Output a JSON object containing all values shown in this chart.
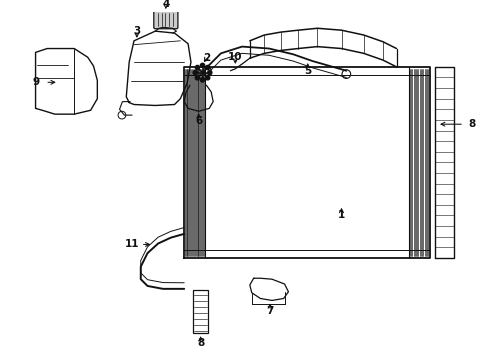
{
  "bg_color": "#ffffff",
  "lc": "#111111",
  "figsize": [
    4.9,
    3.6
  ],
  "dpi": 100,
  "xlim": [
    0,
    4.9
  ],
  "ylim": [
    0,
    3.6
  ]
}
